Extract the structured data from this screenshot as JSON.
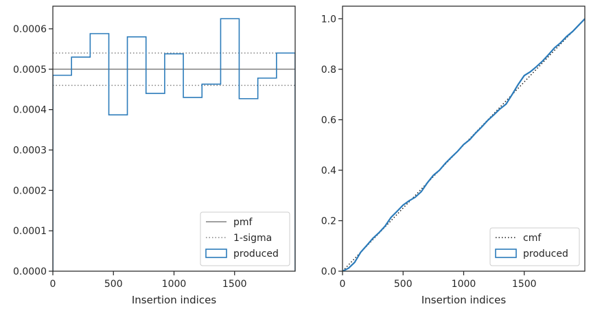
{
  "colors": {
    "produced": "#2b7bba",
    "pmf": "#808080",
    "sigma": "#808080",
    "cmf": "#1a1a1a",
    "axes": "#262626"
  },
  "chart_data": [
    {
      "type": "histogram-step",
      "xlabel": "Insertion indices",
      "ylabel": "",
      "xlim": [
        0,
        2000
      ],
      "ylim": [
        0,
        0.000656
      ],
      "x_ticks": [
        0,
        500,
        1000,
        1500
      ],
      "x_tick_labels": [
        "0",
        "500",
        "1000",
        "1500"
      ],
      "y_ticks": [
        0,
        0.0001,
        0.0002,
        0.0003,
        0.0004,
        0.0005,
        0.0006
      ],
      "y_tick_labels": [
        "0.0000",
        "0.0001",
        "0.0002",
        "0.0003",
        "0.0004",
        "0.0005",
        "0.0006"
      ],
      "bin_edges": [
        0,
        154,
        308,
        462,
        615,
        769,
        923,
        1077,
        1231,
        1385,
        1538,
        1692,
        1846,
        2000
      ],
      "values": [
        0.000485,
        0.00053,
        0.000588,
        0.000387,
        0.00058,
        0.00044,
        0.000538,
        0.00043,
        0.000463,
        0.000625,
        0.000427,
        0.000478,
        0.00054
      ],
      "pmf": 0.0005,
      "sigma_lower": 0.00046,
      "sigma_upper": 0.00054,
      "legend_position": "lower-right",
      "legend": [
        {
          "label": "pmf",
          "style": "solid"
        },
        {
          "label": "1-sigma",
          "style": "dotted"
        },
        {
          "label": "produced",
          "style": "box"
        }
      ]
    },
    {
      "type": "line",
      "xlabel": "Insertion indices",
      "ylabel": "",
      "xlim": [
        0,
        2000
      ],
      "ylim": [
        0,
        1.05
      ],
      "x_ticks": [
        0,
        500,
        1000,
        1500
      ],
      "x_tick_labels": [
        "0",
        "500",
        "1000",
        "1500"
      ],
      "y_ticks": [
        0,
        0.2,
        0.4,
        0.6,
        0.8,
        1.0
      ],
      "y_tick_labels": [
        "0.0",
        "0.2",
        "0.4",
        "0.6",
        "0.8",
        "1.0"
      ],
      "cmf_x": [
        0,
        2000
      ],
      "cmf_y": [
        0,
        1.0
      ],
      "produced_x": [
        0,
        50,
        100,
        150,
        200,
        250,
        300,
        350,
        400,
        450,
        500,
        550,
        600,
        650,
        700,
        750,
        800,
        850,
        900,
        950,
        1000,
        1050,
        1100,
        1150,
        1200,
        1250,
        1300,
        1350,
        1400,
        1450,
        1500,
        1550,
        1600,
        1650,
        1700,
        1750,
        1800,
        1850,
        1900,
        1950,
        2000
      ],
      "produced_y": [
        0.0,
        0.012,
        0.035,
        0.075,
        0.102,
        0.13,
        0.152,
        0.178,
        0.213,
        0.237,
        0.262,
        0.279,
        0.293,
        0.315,
        0.35,
        0.38,
        0.4,
        0.428,
        0.452,
        0.475,
        0.502,
        0.521,
        0.548,
        0.572,
        0.598,
        0.62,
        0.643,
        0.662,
        0.7,
        0.74,
        0.775,
        0.79,
        0.81,
        0.832,
        0.858,
        0.885,
        0.905,
        0.93,
        0.95,
        0.975,
        1.0
      ],
      "legend_position": "lower-right",
      "legend": [
        {
          "label": "cmf",
          "style": "dotted"
        },
        {
          "label": "produced",
          "style": "box"
        }
      ]
    }
  ]
}
